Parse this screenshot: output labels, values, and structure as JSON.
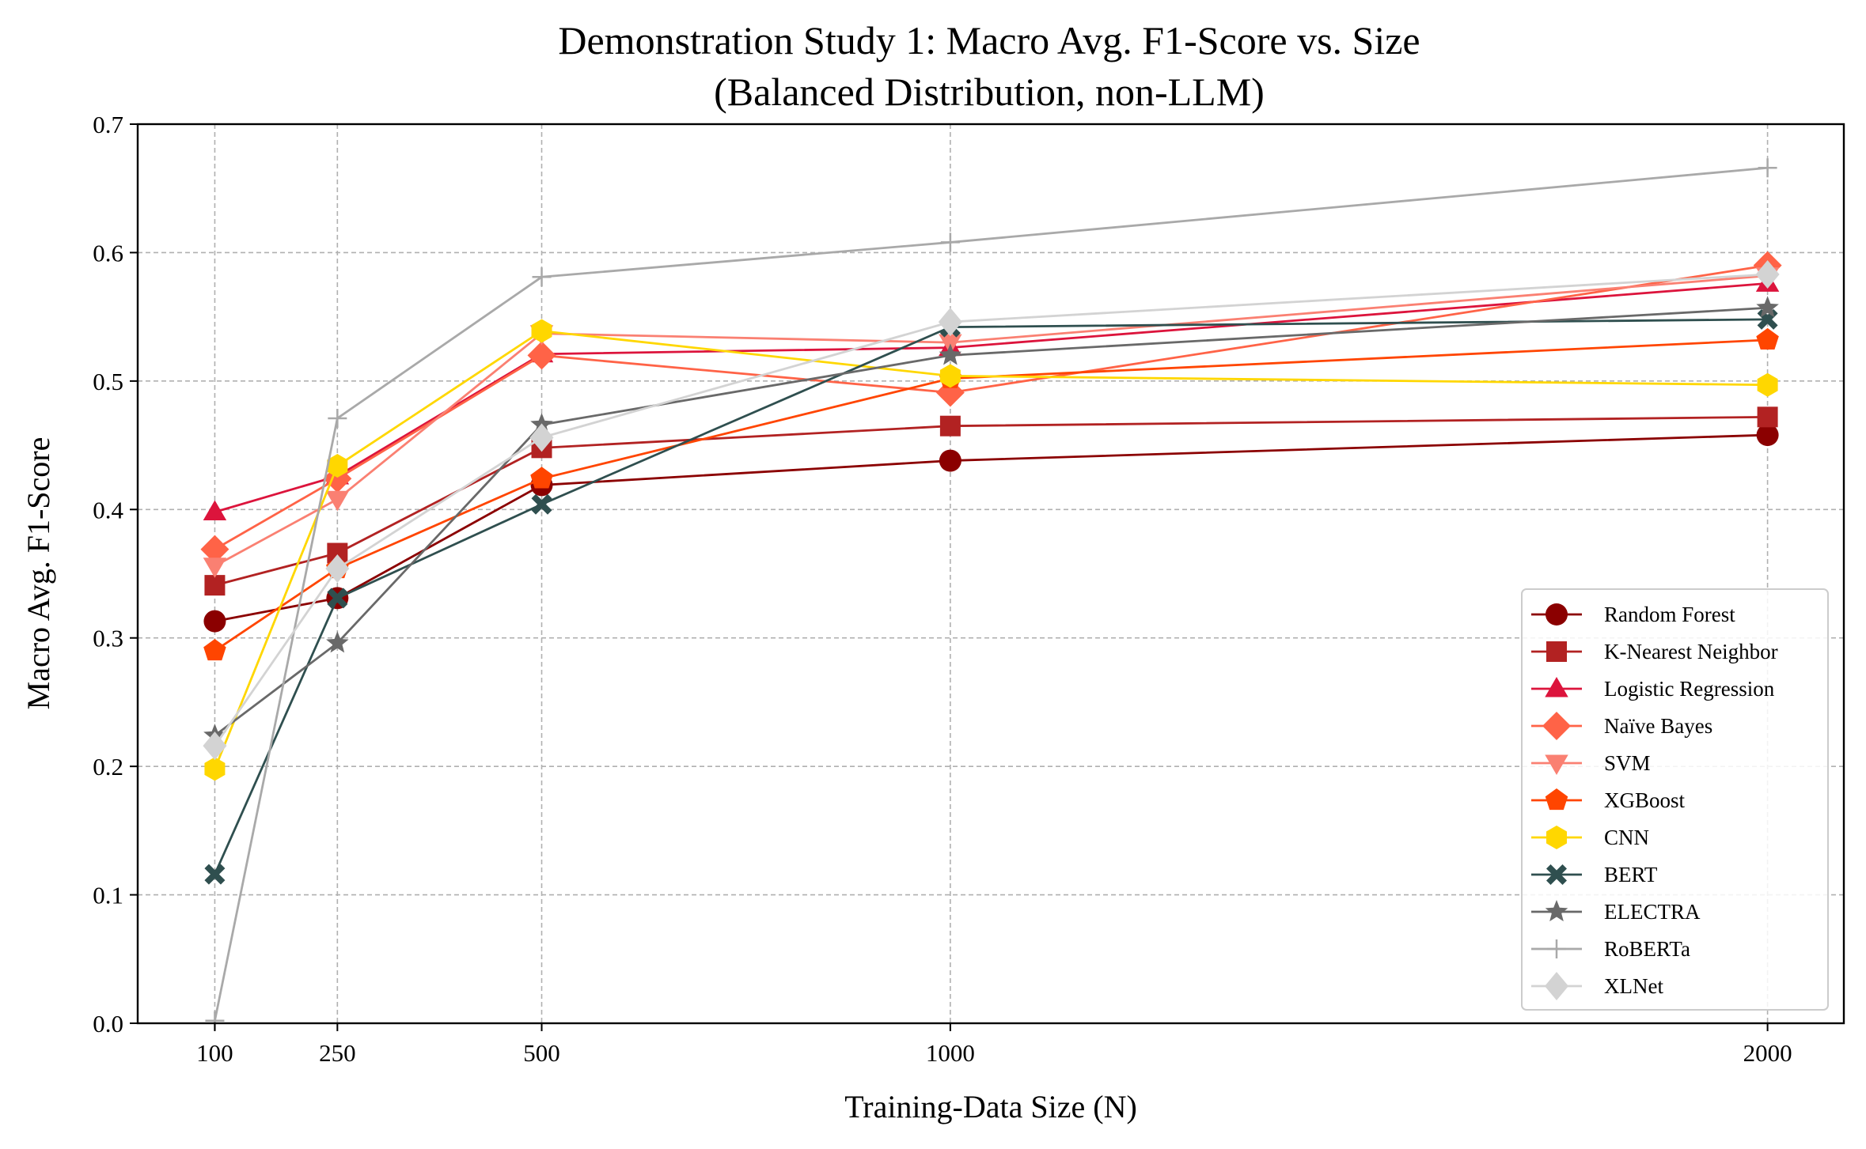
{
  "chart_data": {
    "type": "line",
    "title": "Demonstration Study 1: Macro Avg. F1-Score vs. Size",
    "subtitle": "(Balanced Distribution, non-LLM)",
    "xlabel": "Training-Data Size (N)",
    "ylabel": "Macro Avg. F1-Score",
    "x": [
      100,
      250,
      500,
      1000,
      2000
    ],
    "x_tick_labels": [
      "100",
      "250",
      "500",
      "1000",
      "2000"
    ],
    "xlim": [
      5.65,
      2093.35
    ],
    "ylim": [
      0.0,
      0.7
    ],
    "y_ticks": [
      "0.0",
      "0.1",
      "0.2",
      "0.3",
      "0.4",
      "0.5",
      "0.6",
      "0.7"
    ],
    "grid": true,
    "legend_position": "lower-right",
    "series": [
      {
        "name": "Random Forest",
        "color": "#8b0000",
        "marker": "circle",
        "values": [
          0.313,
          0.331,
          0.419,
          0.438,
          0.458
        ]
      },
      {
        "name": "K-Nearest Neighbor",
        "color": "#b22222",
        "marker": "square",
        "values": [
          0.341,
          0.366,
          0.448,
          0.465,
          0.472
        ]
      },
      {
        "name": "Logistic Regression",
        "color": "#dc143c",
        "marker": "triangle-up",
        "values": [
          0.398,
          0.426,
          0.521,
          0.526,
          0.576
        ]
      },
      {
        "name": "Naïve Bayes",
        "color": "#ff6347",
        "marker": "diamond",
        "values": [
          0.369,
          0.424,
          0.52,
          0.491,
          0.59
        ]
      },
      {
        "name": "SVM",
        "color": "#fa8072",
        "marker": "triangle-down",
        "values": [
          0.356,
          0.408,
          0.537,
          0.53,
          0.582
        ]
      },
      {
        "name": "XGBoost",
        "color": "#ff4500",
        "marker": "pentagon",
        "values": [
          0.29,
          0.354,
          0.424,
          0.502,
          0.532
        ]
      },
      {
        "name": "CNN",
        "color": "#ffd700",
        "marker": "hexagon",
        "values": [
          0.198,
          0.434,
          0.539,
          0.504,
          0.497
        ]
      },
      {
        "name": "BERT",
        "color": "#2f4f4f",
        "marker": "x-filled",
        "values": [
          0.116,
          0.331,
          0.404,
          0.542,
          0.548
        ]
      },
      {
        "name": "ELECTRA",
        "color": "#696969",
        "marker": "star",
        "values": [
          0.224,
          0.296,
          0.466,
          0.52,
          0.557
        ]
      },
      {
        "name": "RoBERTa",
        "color": "#a9a9a9",
        "marker": "plus",
        "values": [
          0.002,
          0.471,
          0.581,
          0.608,
          0.666
        ]
      },
      {
        "name": "XLNet",
        "color": "#d3d3d3",
        "marker": "thin-diamond",
        "values": [
          0.216,
          0.354,
          0.456,
          0.546,
          0.583
        ]
      }
    ]
  }
}
